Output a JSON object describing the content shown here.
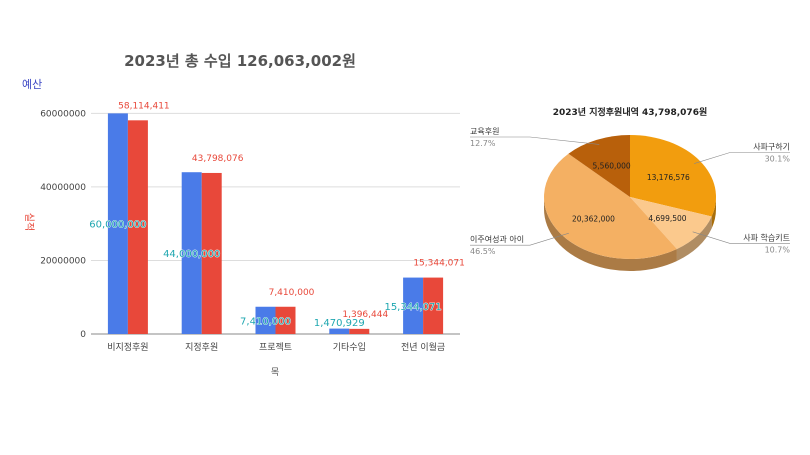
{
  "charts": {
    "bar": {
      "title": "2023년 총 수입 126,063,002원",
      "legend_budget": "예산",
      "legend_actual": "실적",
      "xlabel": "목",
      "yticks": [
        "0",
        "20000000",
        "40000000",
        "60000000"
      ],
      "colors": {
        "budget": "#4a7be8",
        "actual": "#e8483a",
        "budget_label": "#1fa7b0",
        "actual_label": "#e8483a"
      }
    },
    "pie": {
      "title": "2023년 지정후원내역  43,798,076원",
      "colors": [
        "#f29d0e",
        "#fbc98d",
        "#f4b063",
        "#b8600b"
      ]
    }
  },
  "chart_data": [
    {
      "type": "bar",
      "title": "2023년 총 수입 126,063,002원",
      "xlabel": "목",
      "ylabel": "",
      "ylim": [
        0,
        65000000
      ],
      "grid": true,
      "legend": "top-left",
      "categories": [
        "비지정후원",
        "지정후원",
        "프로젝트",
        "기타수입",
        "전년 이월금"
      ],
      "series": [
        {
          "name": "예산",
          "values": [
            60000000,
            44000000,
            7410000,
            1470929,
            15344071
          ],
          "labels": [
            "60,000,000",
            "44,000,000",
            "7,410,000",
            "1,470,929",
            "15,344,071"
          ]
        },
        {
          "name": "실적",
          "values": [
            58114411,
            43798076,
            7410000,
            1396444,
            15344071
          ],
          "labels": [
            "58,114,411",
            "43,798,076",
            "7,410,000",
            "1,396,444",
            "15,344,071"
          ]
        }
      ]
    },
    {
      "type": "pie",
      "title": "2023년 지정후원내역  43,798,076원",
      "slices": [
        {
          "name": "사파구하기",
          "value": 13176576,
          "value_label": "13,176,576",
          "percent": "30.1%"
        },
        {
          "name": "사파 학습키트",
          "value": 4699500,
          "value_label": "4,699,500",
          "percent": "10.7%"
        },
        {
          "name": "이주여성과 아이",
          "value": 20362000,
          "value_label": "20,362,000",
          "percent": "46.5%"
        },
        {
          "name": "교육후원",
          "value": 5560000,
          "value_label": "5,560,000",
          "percent": "12.7%"
        }
      ]
    }
  ]
}
